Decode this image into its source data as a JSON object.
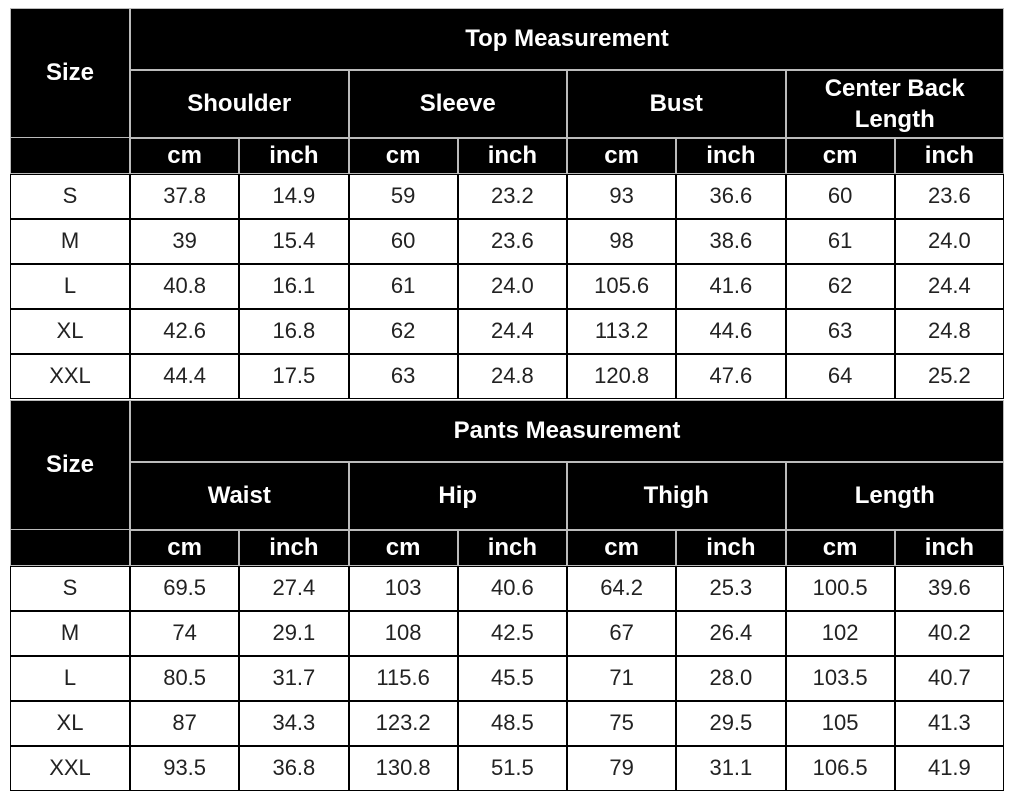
{
  "tables": [
    {
      "size_label": "Size",
      "title": "Top Measurement",
      "groups": [
        "Shoulder",
        "Sleeve",
        "Bust",
        "Center Back Length"
      ],
      "units": [
        "cm",
        "inch",
        "cm",
        "inch",
        "cm",
        "inch",
        "cm",
        "inch"
      ],
      "rows": [
        [
          "S",
          "37.8",
          "14.9",
          "59",
          "23.2",
          "93",
          "36.6",
          "60",
          "23.6"
        ],
        [
          "M",
          "39",
          "15.4",
          "60",
          "23.6",
          "98",
          "38.6",
          "61",
          "24.0"
        ],
        [
          "L",
          "40.8",
          "16.1",
          "61",
          "24.0",
          "105.6",
          "41.6",
          "62",
          "24.4"
        ],
        [
          "XL",
          "42.6",
          "16.8",
          "62",
          "24.4",
          "113.2",
          "44.6",
          "63",
          "24.8"
        ],
        [
          "XXL",
          "44.4",
          "17.5",
          "63",
          "24.8",
          "120.8",
          "47.6",
          "64",
          "25.2"
        ]
      ]
    },
    {
      "size_label": "Size",
      "title": "Pants Measurement",
      "groups": [
        "Waist",
        "Hip",
        "Thigh",
        "Length"
      ],
      "units": [
        "cm",
        "inch",
        "cm",
        "inch",
        "cm",
        "inch",
        "cm",
        "inch"
      ],
      "rows": [
        [
          "S",
          "69.5",
          "27.4",
          "103",
          "40.6",
          "64.2",
          "25.3",
          "100.5",
          "39.6"
        ],
        [
          "M",
          "74",
          "29.1",
          "108",
          "42.5",
          "67",
          "26.4",
          "102",
          "40.2"
        ],
        [
          "L",
          "80.5",
          "31.7",
          "115.6",
          "45.5",
          "71",
          "28.0",
          "103.5",
          "40.7"
        ],
        [
          "XL",
          "87",
          "34.3",
          "123.2",
          "48.5",
          "75",
          "29.5",
          "105",
          "41.3"
        ],
        [
          "XXL",
          "93.5",
          "36.8",
          "130.8",
          "51.5",
          "79",
          "31.1",
          "106.5",
          "41.9"
        ]
      ]
    }
  ]
}
